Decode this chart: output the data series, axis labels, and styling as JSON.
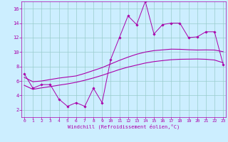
{
  "xlabel": "Windchill (Refroidissement éolien,°C)",
  "bg_color": "#cceeff",
  "line_color": "#aa00aa",
  "grid_color": "#99cccc",
  "x_ticks": [
    0,
    1,
    2,
    3,
    4,
    5,
    6,
    7,
    8,
    9,
    10,
    11,
    12,
    13,
    14,
    15,
    16,
    17,
    18,
    19,
    20,
    21,
    22,
    23
  ],
  "y_ticks": [
    2,
    4,
    6,
    8,
    10,
    12,
    14,
    16
  ],
  "xlim": [
    -0.3,
    23.3
  ],
  "ylim": [
    1.0,
    17.0
  ],
  "scatter_x": [
    0,
    1,
    2,
    3,
    4,
    5,
    6,
    7,
    8,
    9,
    10,
    11,
    12,
    13,
    14,
    15,
    16,
    17,
    18,
    19,
    20,
    21,
    22,
    23
  ],
  "scatter_y": [
    7.0,
    5.0,
    5.5,
    5.5,
    3.5,
    2.5,
    3.0,
    2.5,
    5.0,
    3.0,
    9.0,
    12.0,
    15.0,
    13.8,
    17.0,
    12.5,
    13.8,
    14.0,
    14.0,
    12.0,
    12.1,
    12.8,
    12.8,
    8.3
  ],
  "upper_line_x": [
    0,
    1,
    2,
    3,
    4,
    5,
    6,
    7,
    8,
    9,
    10,
    11,
    12,
    13,
    14,
    15,
    16,
    17,
    18,
    19,
    20,
    21,
    22,
    23
  ],
  "upper_line_y": [
    6.5,
    5.9,
    6.0,
    6.2,
    6.4,
    6.55,
    6.7,
    7.05,
    7.45,
    7.85,
    8.35,
    8.85,
    9.3,
    9.7,
    10.0,
    10.2,
    10.3,
    10.4,
    10.38,
    10.32,
    10.28,
    10.3,
    10.28,
    10.05
  ],
  "lower_line_x": [
    0,
    1,
    2,
    3,
    4,
    5,
    6,
    7,
    8,
    9,
    10,
    11,
    12,
    13,
    14,
    15,
    16,
    17,
    18,
    19,
    20,
    21,
    22,
    23
  ],
  "lower_line_y": [
    5.4,
    4.85,
    5.05,
    5.22,
    5.42,
    5.6,
    5.82,
    6.1,
    6.42,
    6.78,
    7.18,
    7.58,
    7.92,
    8.2,
    8.48,
    8.68,
    8.82,
    8.94,
    9.0,
    9.02,
    9.04,
    9.0,
    8.9,
    8.52
  ]
}
